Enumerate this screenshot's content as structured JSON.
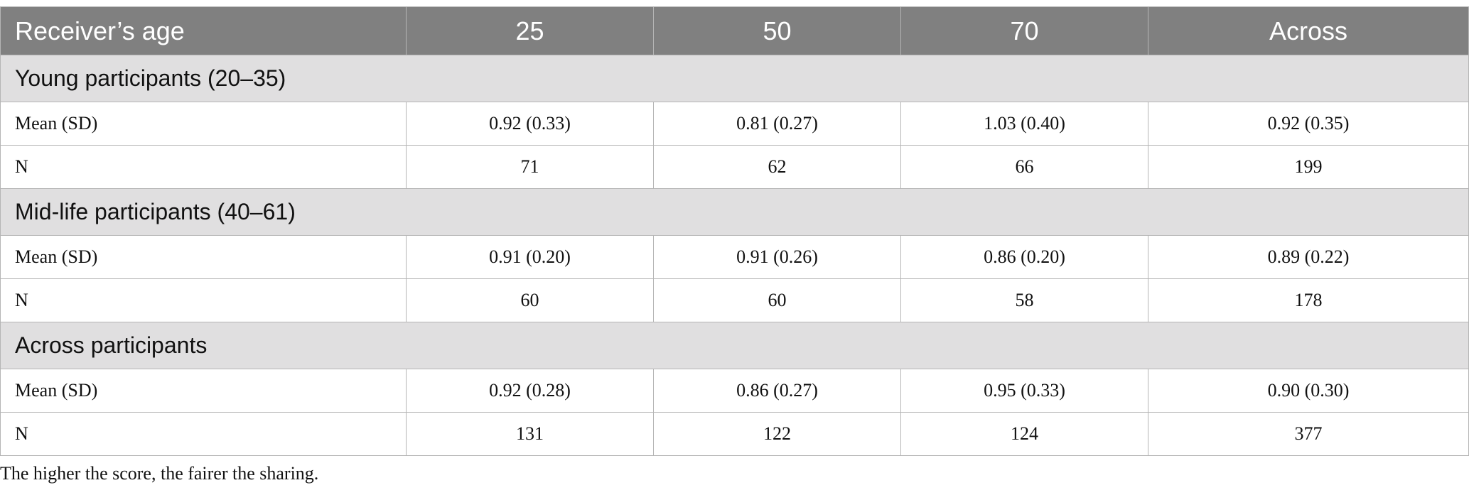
{
  "table": {
    "header": [
      "Receiver’s age",
      "25",
      "50",
      "70",
      "Across"
    ],
    "groups": [
      {
        "title": "Young participants (20–35)",
        "rows": [
          [
            "Mean (SD)",
            "0.92 (0.33)",
            "0.81 (0.27)",
            "1.03 (0.40)",
            "0.92 (0.35)"
          ],
          [
            "N",
            "71",
            "62",
            "66",
            "199"
          ]
        ]
      },
      {
        "title": "Mid-life participants (40–61)",
        "rows": [
          [
            "Mean (SD)",
            "0.91 (0.20)",
            "0.91 (0.26)",
            "0.86 (0.20)",
            "0.89 (0.22)"
          ],
          [
            "N",
            "60",
            "60",
            "58",
            "178"
          ]
        ]
      },
      {
        "title": "Across participants",
        "rows": [
          [
            "Mean (SD)",
            "0.92 (0.28)",
            "0.86 (0.27)",
            "0.95 (0.33)",
            "0.90 (0.30)"
          ],
          [
            "N",
            "131",
            "122",
            "124",
            "377"
          ]
        ]
      }
    ]
  },
  "footnote": "The higher the score, the fairer the sharing."
}
